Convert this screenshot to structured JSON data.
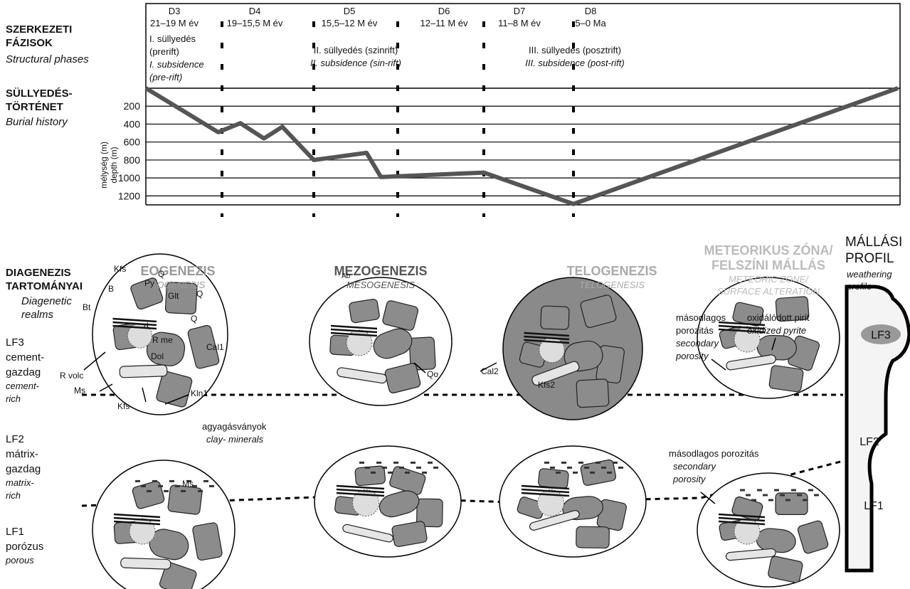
{
  "chart_data": {
    "type": "line",
    "title_lines": [
      "SÜLLYEDÉS-",
      "TÖRTÉNET"
    ],
    "subtitle": "Burial history",
    "y_label_lines": [
      "mélység (m)",
      "depth (m)"
    ],
    "x": [
      21,
      19.1,
      18.3,
      17.4,
      16.7,
      15.5,
      13.3,
      12.7,
      11,
      8,
      0
    ],
    "series": [
      {
        "color": "#555555",
        "values": [
          0,
          490,
          390,
          560,
          430,
          800,
          720,
          990,
          940,
          1290,
          0
        ]
      }
    ],
    "xlim": [
      21,
      0
    ],
    "dividers": [
      19,
      15.5,
      12,
      11,
      8
    ],
    "ylim": [
      0,
      1300
    ],
    "y_inverted": true,
    "yticks": [
      200,
      400,
      600,
      800,
      1000,
      1200
    ],
    "grid": true
  },
  "phases": {
    "title_lines": [
      "SZERKEZETI",
      "FÁZISOK"
    ],
    "subtitle": "Structural phases",
    "items": [
      {
        "name": "D3",
        "age": "21–19 M év"
      },
      {
        "name": "D4",
        "age": "19–15,5 M év"
      },
      {
        "name": "D5",
        "age": "15,5–12 M év"
      },
      {
        "name": "D6",
        "age": "12–11 M év"
      },
      {
        "name": "D7",
        "age": "11–8 M év"
      },
      {
        "name": "D8",
        "age": "5–0 Ma"
      }
    ]
  },
  "subsidence": [
    {
      "hu_lines": [
        "I. süllyedés",
        "(prerift)"
      ],
      "en_lines": [
        "I. subsidence",
        "(pre-rift)"
      ]
    },
    {
      "hu_lines": [
        "II. süllyedés (szinrift)"
      ],
      "en_lines": [
        "II. subsidence (sin-rift)"
      ]
    },
    {
      "hu_lines": [
        "III. süllyedés (posztrift)"
      ],
      "en_lines": [
        "III. subsidence (post-rift)"
      ]
    }
  ],
  "realms": {
    "title_lines": [
      "DIAGENEZIS",
      "TARTOMÁNYAI"
    ],
    "subtitle_lines": [
      "Diagenetic",
      "realms"
    ],
    "columns": [
      {
        "hu_lines": [
          "EOGENEZIS"
        ],
        "en_lines": [
          "EOGENESIS"
        ]
      },
      {
        "hu_lines": [
          "MEZOGENEZIS"
        ],
        "en_lines": [
          "MESOGENESIS"
        ]
      },
      {
        "hu_lines": [
          "TELOGENEZIS"
        ],
        "en_lines": [
          "TELOGENESIS"
        ]
      },
      {
        "hu_lines": [
          "METEORIKUS ZÓNA/",
          "FELSZÍNI MÁLLÁS"
        ],
        "en_lines": [
          "METEORIC ZONE/",
          "SURFACE ALTERATION"
        ]
      }
    ],
    "profile": {
      "hu_lines": [
        "MÁLLÁSI",
        "PROFIL"
      ],
      "en_lines": [
        "weathering",
        "profile"
      ]
    }
  },
  "facies": [
    {
      "hu_lines": [
        "LF3",
        "cement-",
        "gazdag"
      ],
      "en_lines": [
        "cement-",
        "rich"
      ]
    },
    {
      "hu_lines": [
        "LF2",
        "mátrix-",
        "gazdag"
      ],
      "en_lines": [
        "matrix-",
        "rich"
      ]
    },
    {
      "hu_lines": [
        "LF1",
        "porózus"
      ],
      "en_lines": [
        "porous"
      ]
    }
  ],
  "profile_labels": [
    "LF3",
    "LF2",
    "LF1"
  ],
  "mineral_labels": [
    "Kfs",
    "Q",
    "B",
    "Py",
    "Glt",
    "Q",
    "Bt",
    "Q",
    "d",
    "R me",
    "Cal1",
    "R volc",
    "Dol",
    "Ms",
    "Kfs",
    "Kln1",
    "Ab",
    "Qo",
    "Cal2",
    "Kfs2",
    "Ms"
  ],
  "annotations": [
    {
      "hu_lines": [
        "agyagásványok"
      ],
      "en_lines": [
        "clay- minerals"
      ]
    },
    {
      "hu_lines": [
        "másodlagos",
        "porozitás"
      ],
      "en_lines": [
        "secondary",
        "porosity"
      ]
    },
    {
      "hu_lines": [
        "oxidálódott pirit"
      ],
      "en_lines": [
        "oxidized pyrite"
      ]
    },
    {
      "hu_lines": [
        "másodlagos porozitás"
      ],
      "en_lines": [
        "secondary",
        "porosity"
      ]
    }
  ]
}
